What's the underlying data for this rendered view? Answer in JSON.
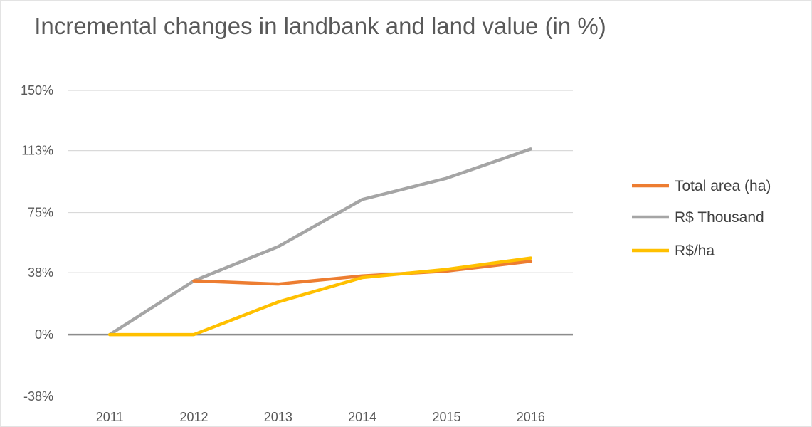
{
  "chart_data": {
    "type": "line",
    "title": "Incremental changes in landbank and land value (in %)",
    "xlabel": "",
    "ylabel": "",
    "categories": [
      "2011",
      "2012",
      "2013",
      "2014",
      "2015",
      "2016"
    ],
    "y_ticks": [
      -38,
      0,
      38,
      75,
      113,
      150
    ],
    "y_tick_labels": [
      "-38%",
      "0%",
      "38%",
      "75%",
      "113%",
      "150%"
    ],
    "ylim": [
      -38,
      150
    ],
    "grid": true,
    "legend_position": "right",
    "series": [
      {
        "name": "Total area (ha)",
        "color": "#ed7d31",
        "values": [
          null,
          33,
          31,
          36,
          39,
          45
        ]
      },
      {
        "name": "R$ Thousand",
        "color": "#a5a5a5",
        "values": [
          0,
          33,
          54,
          83,
          96,
          114
        ]
      },
      {
        "name": "R$/ha",
        "color": "#ffc000",
        "values": [
          0,
          0,
          20,
          35,
          40,
          47
        ]
      }
    ]
  }
}
